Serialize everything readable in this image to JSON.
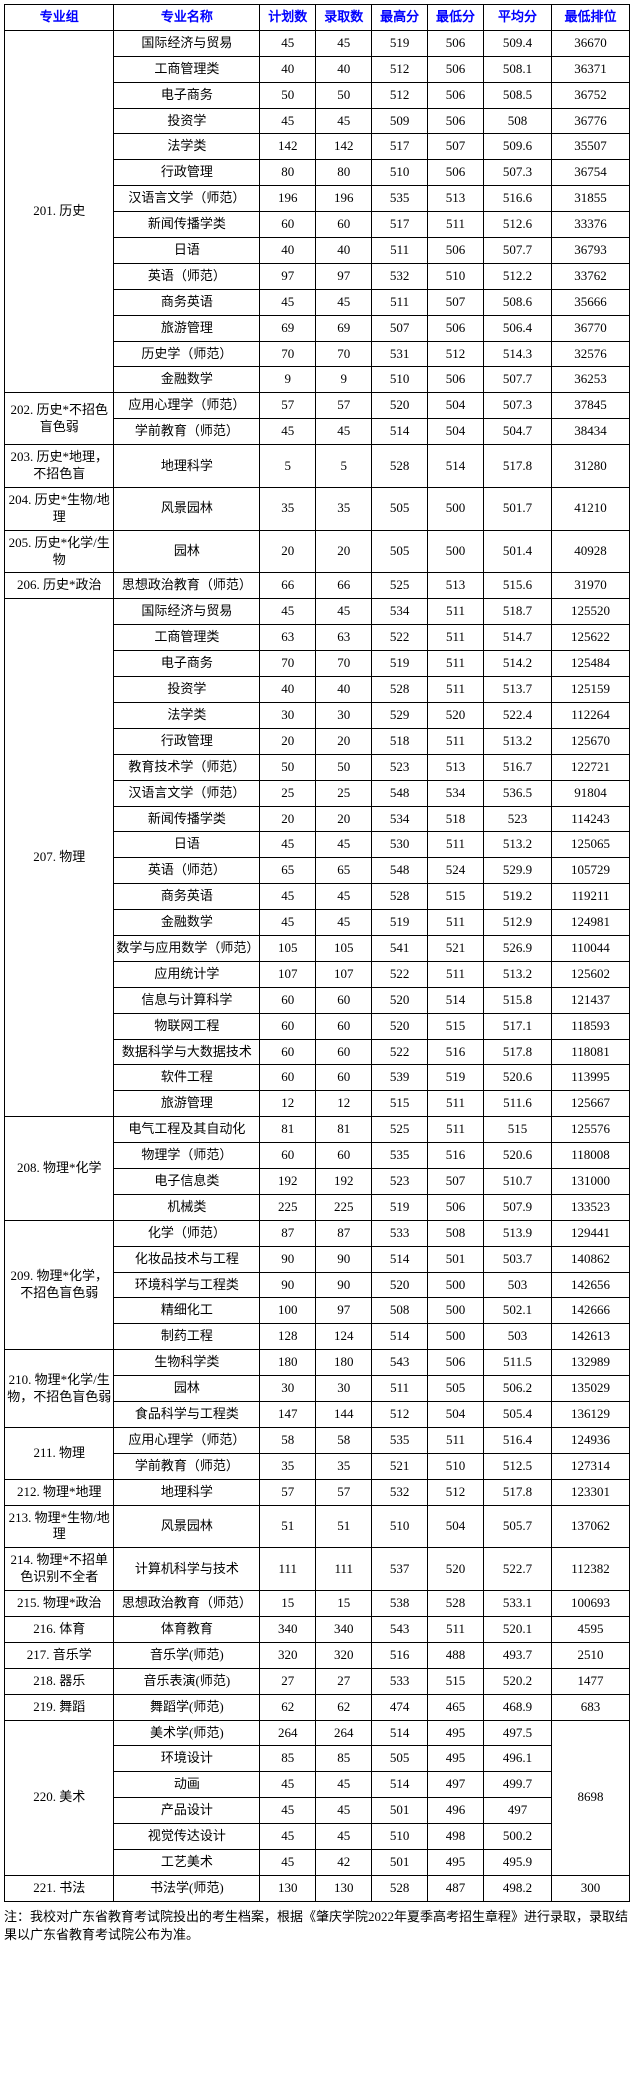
{
  "headers": [
    "专业组",
    "专业名称",
    "计划数",
    "录取数",
    "最高分",
    "最低分",
    "平均分",
    "最低排位"
  ],
  "footnote": "注：我校对广东省教育考试院投出的考生档案，根据《肇庆学院2022年夏季高考招生章程》进行录取，录取结果以广东省教育考试院公布为准。",
  "rows": [
    {
      "grp": "201. 历史",
      "span": 14,
      "c": [
        "国际经济与贸易",
        "45",
        "45",
        "519",
        "506",
        "509.4",
        "36670"
      ]
    },
    {
      "c": [
        "工商管理类",
        "40",
        "40",
        "512",
        "506",
        "508.1",
        "36371"
      ]
    },
    {
      "c": [
        "电子商务",
        "50",
        "50",
        "512",
        "506",
        "508.5",
        "36752"
      ]
    },
    {
      "c": [
        "投资学",
        "45",
        "45",
        "509",
        "506",
        "508",
        "36776"
      ]
    },
    {
      "c": [
        "法学类",
        "142",
        "142",
        "517",
        "507",
        "509.6",
        "35507"
      ]
    },
    {
      "c": [
        "行政管理",
        "80",
        "80",
        "510",
        "506",
        "507.3",
        "36754"
      ]
    },
    {
      "c": [
        "汉语言文学（师范）",
        "196",
        "196",
        "535",
        "513",
        "516.6",
        "31855"
      ]
    },
    {
      "c": [
        "新闻传播学类",
        "60",
        "60",
        "517",
        "511",
        "512.6",
        "33376"
      ]
    },
    {
      "c": [
        "日语",
        "40",
        "40",
        "511",
        "506",
        "507.7",
        "36793"
      ]
    },
    {
      "c": [
        "英语（师范）",
        "97",
        "97",
        "532",
        "510",
        "512.2",
        "33762"
      ]
    },
    {
      "c": [
        "商务英语",
        "45",
        "45",
        "511",
        "507",
        "508.6",
        "35666"
      ]
    },
    {
      "c": [
        "旅游管理",
        "69",
        "69",
        "507",
        "506",
        "506.4",
        "36770"
      ]
    },
    {
      "c": [
        "历史学（师范）",
        "70",
        "70",
        "531",
        "512",
        "514.3",
        "32576"
      ]
    },
    {
      "c": [
        "金融数学",
        "9",
        "9",
        "510",
        "506",
        "507.7",
        "36253"
      ]
    },
    {
      "grp": "202. 历史*不招色盲色弱",
      "span": 2,
      "c": [
        "应用心理学（师范）",
        "57",
        "57",
        "520",
        "504",
        "507.3",
        "37845"
      ]
    },
    {
      "c": [
        "学前教育（师范）",
        "45",
        "45",
        "514",
        "504",
        "504.7",
        "38434"
      ]
    },
    {
      "grp": "203. 历史*地理，不招色盲",
      "span": 1,
      "c": [
        "地理科学",
        "5",
        "5",
        "528",
        "514",
        "517.8",
        "31280"
      ]
    },
    {
      "grp": "204. 历史*生物/地理",
      "span": 1,
      "c": [
        "风景园林",
        "35",
        "35",
        "505",
        "500",
        "501.7",
        "41210"
      ]
    },
    {
      "grp": "205. 历史*化学/生物",
      "span": 1,
      "c": [
        "园林",
        "20",
        "20",
        "505",
        "500",
        "501.4",
        "40928"
      ]
    },
    {
      "grp": "206. 历史*政治",
      "span": 1,
      "c": [
        "思想政治教育（师范）",
        "66",
        "66",
        "525",
        "513",
        "515.6",
        "31970"
      ]
    },
    {
      "grp": "207. 物理",
      "span": 20,
      "c": [
        "国际经济与贸易",
        "45",
        "45",
        "534",
        "511",
        "518.7",
        "125520"
      ]
    },
    {
      "c": [
        "工商管理类",
        "63",
        "63",
        "522",
        "511",
        "514.7",
        "125622"
      ]
    },
    {
      "c": [
        "电子商务",
        "70",
        "70",
        "519",
        "511",
        "514.2",
        "125484"
      ]
    },
    {
      "c": [
        "投资学",
        "40",
        "40",
        "528",
        "511",
        "513.7",
        "125159"
      ]
    },
    {
      "c": [
        "法学类",
        "30",
        "30",
        "529",
        "520",
        "522.4",
        "112264"
      ]
    },
    {
      "c": [
        "行政管理",
        "20",
        "20",
        "518",
        "511",
        "513.2",
        "125670"
      ]
    },
    {
      "c": [
        "教育技术学（师范）",
        "50",
        "50",
        "523",
        "513",
        "516.7",
        "122721"
      ]
    },
    {
      "c": [
        "汉语言文学（师范）",
        "25",
        "25",
        "548",
        "534",
        "536.5",
        "91804"
      ]
    },
    {
      "c": [
        "新闻传播学类",
        "20",
        "20",
        "534",
        "518",
        "523",
        "114243"
      ]
    },
    {
      "c": [
        "日语",
        "45",
        "45",
        "530",
        "511",
        "513.2",
        "125065"
      ]
    },
    {
      "c": [
        "英语（师范）",
        "65",
        "65",
        "548",
        "524",
        "529.9",
        "105729"
      ]
    },
    {
      "c": [
        "商务英语",
        "45",
        "45",
        "528",
        "515",
        "519.2",
        "119211"
      ]
    },
    {
      "c": [
        "金融数学",
        "45",
        "45",
        "519",
        "511",
        "512.9",
        "124981"
      ]
    },
    {
      "c": [
        "数学与应用数学（师范）",
        "105",
        "105",
        "541",
        "521",
        "526.9",
        "110044"
      ]
    },
    {
      "c": [
        "应用统计学",
        "107",
        "107",
        "522",
        "511",
        "513.2",
        "125602"
      ]
    },
    {
      "c": [
        "信息与计算科学",
        "60",
        "60",
        "520",
        "514",
        "515.8",
        "121437"
      ]
    },
    {
      "c": [
        "物联网工程",
        "60",
        "60",
        "520",
        "515",
        "517.1",
        "118593"
      ]
    },
    {
      "c": [
        "数据科学与大数据技术",
        "60",
        "60",
        "522",
        "516",
        "517.8",
        "118081"
      ]
    },
    {
      "c": [
        "软件工程",
        "60",
        "60",
        "539",
        "519",
        "520.6",
        "113995"
      ]
    },
    {
      "c": [
        "旅游管理",
        "12",
        "12",
        "515",
        "511",
        "511.6",
        "125667"
      ]
    },
    {
      "grp": "208. 物理*化学",
      "span": 4,
      "c": [
        "电气工程及其自动化",
        "81",
        "81",
        "525",
        "511",
        "515",
        "125576"
      ]
    },
    {
      "c": [
        "物理学（师范）",
        "60",
        "60",
        "535",
        "516",
        "520.6",
        "118008"
      ]
    },
    {
      "c": [
        "电子信息类",
        "192",
        "192",
        "523",
        "507",
        "510.7",
        "131000"
      ]
    },
    {
      "c": [
        "机械类",
        "225",
        "225",
        "519",
        "506",
        "507.9",
        "133523"
      ]
    },
    {
      "grp": "209. 物理*化学，不招色盲色弱",
      "span": 5,
      "c": [
        "化学（师范）",
        "87",
        "87",
        "533",
        "508",
        "513.9",
        "129441"
      ]
    },
    {
      "c": [
        "化妆品技术与工程",
        "90",
        "90",
        "514",
        "501",
        "503.7",
        "140862"
      ]
    },
    {
      "c": [
        "环境科学与工程类",
        "90",
        "90",
        "520",
        "500",
        "503",
        "142656"
      ]
    },
    {
      "c": [
        "精细化工",
        "100",
        "97",
        "508",
        "500",
        "502.1",
        "142666"
      ]
    },
    {
      "c": [
        "制药工程",
        "128",
        "124",
        "514",
        "500",
        "503",
        "142613"
      ]
    },
    {
      "grp": "210. 物理*化学/生物，不招色盲色弱",
      "span": 3,
      "c": [
        "生物科学类",
        "180",
        "180",
        "543",
        "506",
        "511.5",
        "132989"
      ]
    },
    {
      "c": [
        "园林",
        "30",
        "30",
        "511",
        "505",
        "506.2",
        "135029"
      ]
    },
    {
      "c": [
        "食品科学与工程类",
        "147",
        "144",
        "512",
        "504",
        "505.4",
        "136129"
      ]
    },
    {
      "grp": "211. 物理",
      "span": 2,
      "c": [
        "应用心理学（师范）",
        "58",
        "58",
        "535",
        "511",
        "516.4",
        "124936"
      ]
    },
    {
      "c": [
        "学前教育（师范）",
        "35",
        "35",
        "521",
        "510",
        "512.5",
        "127314"
      ]
    },
    {
      "grp": "212. 物理*地理",
      "span": 1,
      "c": [
        "地理科学",
        "57",
        "57",
        "532",
        "512",
        "517.8",
        "123301"
      ]
    },
    {
      "grp": "213. 物理*生物/地理",
      "span": 1,
      "c": [
        "风景园林",
        "51",
        "51",
        "510",
        "504",
        "505.7",
        "137062"
      ]
    },
    {
      "grp": "214. 物理*不招单色识别不全者",
      "span": 1,
      "c": [
        "计算机科学与技术",
        "111",
        "111",
        "537",
        "520",
        "522.7",
        "112382"
      ]
    },
    {
      "grp": "215. 物理*政治",
      "span": 1,
      "c": [
        "思想政治教育（师范）",
        "15",
        "15",
        "538",
        "528",
        "533.1",
        "100693"
      ]
    },
    {
      "grp": "216. 体育",
      "span": 1,
      "c": [
        "体育教育",
        "340",
        "340",
        "543",
        "511",
        "520.1",
        "4595"
      ]
    },
    {
      "grp": "217. 音乐学",
      "span": 1,
      "c": [
        "音乐学(师范)",
        "320",
        "320",
        "516",
        "488",
        "493.7",
        "2510"
      ]
    },
    {
      "grp": "218. 器乐",
      "span": 1,
      "c": [
        "音乐表演(师范)",
        "27",
        "27",
        "533",
        "515",
        "520.2",
        "1477"
      ]
    },
    {
      "grp": "219. 舞蹈",
      "span": 1,
      "c": [
        "舞蹈学(师范)",
        "62",
        "62",
        "474",
        "465",
        "468.9",
        "683"
      ]
    },
    {
      "grp": "220. 美术",
      "span": 6,
      "c": [
        "美术学(师范)",
        "264",
        "264",
        "514",
        "495",
        "497.5",
        ""
      ],
      "rank": "8698",
      "rspan": 6
    },
    {
      "c": [
        "环境设计",
        "85",
        "85",
        "505",
        "495",
        "496.1",
        ""
      ]
    },
    {
      "c": [
        "动画",
        "45",
        "45",
        "514",
        "497",
        "499.7",
        ""
      ]
    },
    {
      "c": [
        "产品设计",
        "45",
        "45",
        "501",
        "496",
        "497",
        ""
      ]
    },
    {
      "c": [
        "视觉传达设计",
        "45",
        "45",
        "510",
        "498",
        "500.2",
        ""
      ]
    },
    {
      "c": [
        "工艺美术",
        "45",
        "42",
        "501",
        "495",
        "495.9",
        ""
      ]
    },
    {
      "grp": "221. 书法",
      "span": 1,
      "c": [
        "书法学(师范)",
        "130",
        "130",
        "528",
        "487",
        "498.2",
        "300"
      ]
    }
  ]
}
